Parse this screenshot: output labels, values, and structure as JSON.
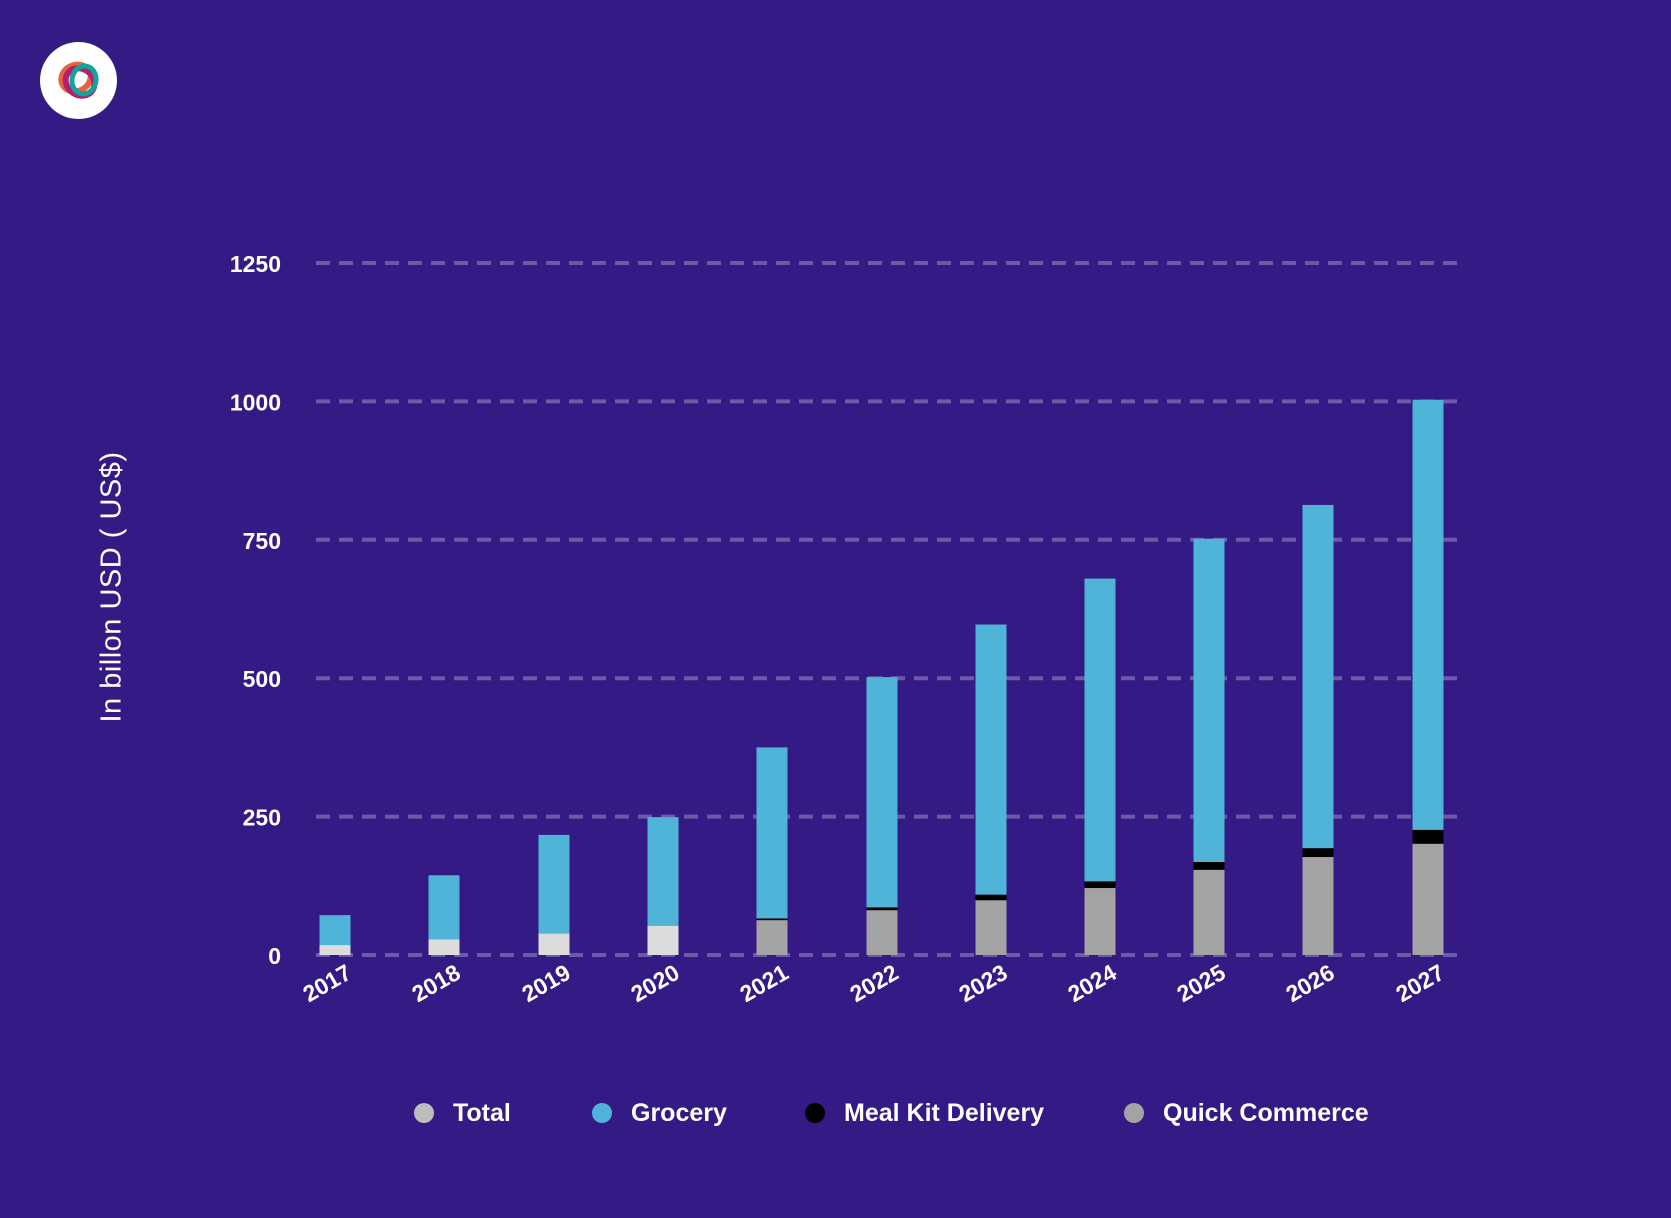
{
  "chart_data": {
    "type": "bar",
    "stacked": true,
    "categories": [
      "2017",
      "2018",
      "2019",
      "2020",
      "2021",
      "2022",
      "2023",
      "2024",
      "2025",
      "2026",
      "2027"
    ],
    "series": [
      {
        "name": "Total",
        "color": "#dcdcdc",
        "values": [
          18,
          28,
          39,
          53,
          0,
          0,
          0,
          0,
          0,
          0,
          0
        ]
      },
      {
        "name": "Quick Commerce",
        "color": "#a3a3a3",
        "values": [
          0,
          0,
          0,
          0,
          63,
          81,
          99,
          121,
          154,
          177,
          201
        ]
      },
      {
        "name": "Meal Kit Delivery",
        "color": "#000000",
        "values": [
          0,
          0,
          0,
          0,
          3,
          5,
          10,
          12,
          14,
          16,
          25
        ]
      },
      {
        "name": "Grocery",
        "color": "#50b3d8",
        "values": [
          54,
          116,
          178,
          196,
          309,
          416,
          488,
          547,
          584,
          620,
          777
        ]
      }
    ],
    "yticks": [
      "0",
      "250",
      "500",
      "750",
      "1000",
      "1250"
    ],
    "ylim": [
      0,
      1250
    ],
    "ylabel": "In billon USD ( US$)",
    "xlabel": "",
    "title": "",
    "grid": "horizontal-dashed",
    "legend_position": "bottom"
  },
  "legend": [
    {
      "label": "Total",
      "color": "#bdbdbd"
    },
    {
      "label": "Grocery",
      "color": "#4fb3da"
    },
    {
      "label": "Meal Kit Delivery",
      "color": "#000000"
    },
    {
      "label": "Quick Commerce",
      "color": "#a3a3a3"
    }
  ],
  "logo": {
    "icon": "brand-logo-icon"
  }
}
